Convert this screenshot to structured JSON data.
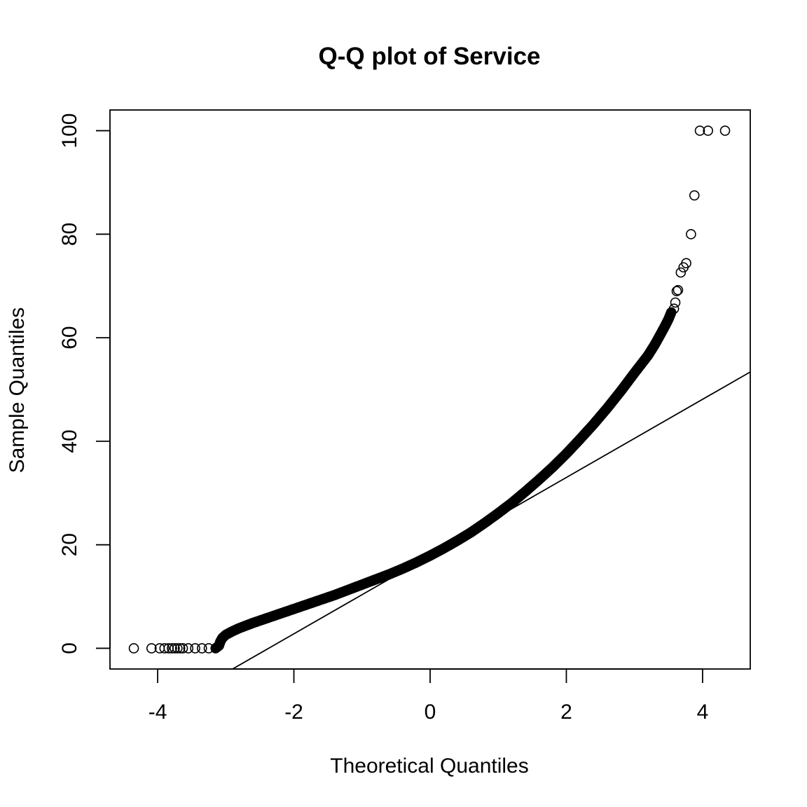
{
  "chart_data": {
    "type": "scatter",
    "title": "Q-Q plot of Service",
    "xlabel": "Theoretical Quantiles",
    "ylabel": "Sample Quantiles",
    "xlim": [
      -4.7,
      4.7
    ],
    "ylim": [
      -4,
      104
    ],
    "x_ticks": [
      -4,
      -2,
      0,
      2,
      4
    ],
    "x_tick_labels": [
      "-4",
      "-2",
      "0",
      "2",
      "4"
    ],
    "y_ticks": [
      0,
      20,
      40,
      60,
      80,
      100
    ],
    "y_tick_labels": [
      "0",
      "20",
      "40",
      "60",
      "80",
      "100"
    ],
    "grid": false,
    "legend": "none",
    "marker": "open-circle",
    "series": [
      {
        "points": [
          [
            -4.35,
            0
          ],
          [
            -4.09,
            0
          ],
          [
            -3.97,
            0
          ],
          [
            -3.9,
            0
          ],
          [
            -3.84,
            0
          ],
          [
            -3.79,
            0
          ],
          [
            -3.75,
            0
          ],
          [
            -3.71,
            0
          ],
          [
            -3.67,
            0
          ],
          [
            -3.63,
            0
          ],
          [
            -3.55,
            0
          ],
          [
            -3.45,
            0
          ],
          [
            -3.35,
            0
          ],
          [
            -3.25,
            0
          ],
          [
            -3.15,
            0
          ],
          [
            -3.1,
            0.5
          ],
          [
            -3.08,
            1.3
          ],
          [
            -3.05,
            2.0
          ],
          [
            -3.0,
            2.6
          ],
          [
            -2.9,
            3.3
          ],
          [
            -2.8,
            3.9
          ],
          [
            -2.6,
            4.9
          ],
          [
            -2.4,
            5.8
          ],
          [
            -2.2,
            6.7
          ],
          [
            -2.0,
            7.6
          ],
          [
            -1.8,
            8.5
          ],
          [
            -1.6,
            9.4
          ],
          [
            -1.4,
            10.3
          ],
          [
            -1.2,
            11.3
          ],
          [
            -1.0,
            12.3
          ],
          [
            -0.8,
            13.3
          ],
          [
            -0.6,
            14.3
          ],
          [
            -0.4,
            15.4
          ],
          [
            -0.2,
            16.6
          ],
          [
            0.0,
            17.9
          ],
          [
            0.2,
            19.3
          ],
          [
            0.4,
            20.8
          ],
          [
            0.6,
            22.4
          ],
          [
            0.8,
            24.2
          ],
          [
            1.0,
            26.1
          ],
          [
            1.2,
            28.1
          ],
          [
            1.4,
            30.3
          ],
          [
            1.6,
            32.6
          ],
          [
            1.8,
            35.0
          ],
          [
            2.0,
            37.6
          ],
          [
            2.2,
            40.4
          ],
          [
            2.4,
            43.3
          ],
          [
            2.6,
            46.4
          ],
          [
            2.8,
            49.7
          ],
          [
            3.0,
            53.2
          ],
          [
            3.2,
            56.6
          ],
          [
            3.3,
            58.7
          ],
          [
            3.38,
            60.6
          ],
          [
            3.45,
            62.3
          ],
          [
            3.5,
            63.6
          ],
          [
            3.54,
            64.9
          ],
          [
            3.58,
            65.6
          ],
          [
            3.6,
            66.8
          ],
          [
            3.62,
            69.0
          ],
          [
            3.64,
            69.2
          ],
          [
            3.68,
            72.6
          ],
          [
            3.72,
            73.6
          ],
          [
            3.76,
            74.4
          ],
          [
            3.83,
            80.0
          ],
          [
            3.88,
            87.5
          ],
          [
            3.96,
            100
          ],
          [
            4.08,
            100
          ],
          [
            4.33,
            100
          ]
        ]
      }
    ],
    "reference_line": {
      "intercept": 17.9,
      "slope": 7.55
    }
  }
}
